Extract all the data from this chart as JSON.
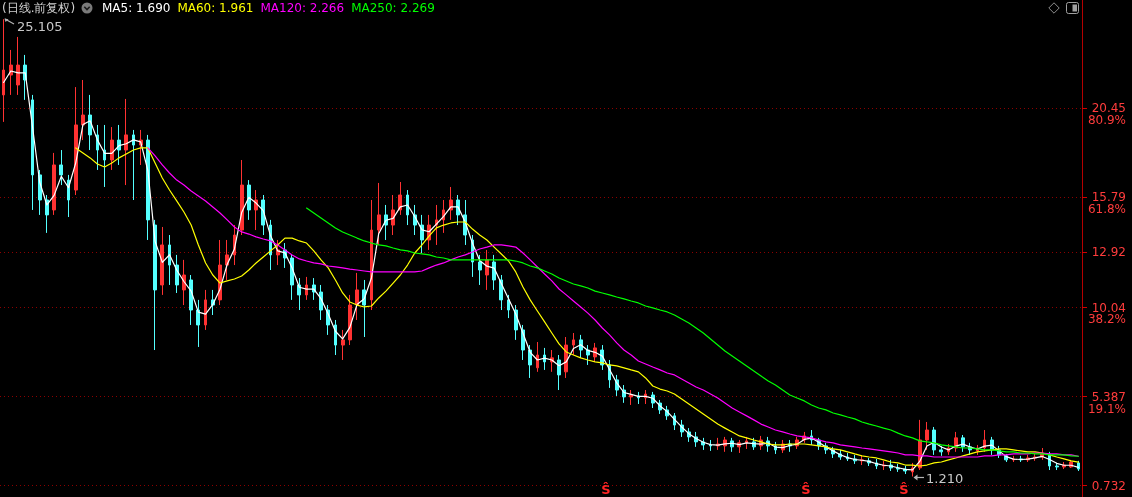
{
  "chart_data": {
    "type": "candlestick",
    "title": "(日线.前复权)",
    "categories": [
      null,
      null,
      null,
      null,
      null,
      null,
      null,
      null,
      null,
      null,
      null,
      null,
      null,
      null,
      null,
      null,
      null,
      null,
      null,
      null,
      null,
      null,
      null,
      null,
      null,
      null,
      null,
      null,
      null,
      null,
      null,
      null,
      null,
      null,
      null,
      null,
      null,
      null,
      null,
      null,
      null,
      null,
      null,
      null,
      null,
      null,
      null,
      null,
      null,
      null,
      null,
      null,
      null,
      null,
      null,
      null,
      null,
      null,
      null,
      null,
      null,
      null,
      null,
      null,
      null,
      null,
      null,
      null,
      null,
      null,
      null,
      null,
      null,
      null,
      null,
      null,
      null,
      null,
      null,
      null,
      null,
      null,
      null,
      null,
      null,
      null,
      null,
      null,
      null,
      null,
      null,
      null,
      null,
      null,
      null,
      null,
      null,
      null,
      null,
      null,
      null,
      null,
      null,
      null,
      null,
      null,
      null,
      null,
      null,
      null,
      null,
      null,
      null,
      null,
      null,
      null,
      null,
      null,
      null,
      null,
      null,
      null,
      null,
      null,
      null,
      null,
      null,
      null,
      null,
      null,
      null,
      null,
      null,
      null,
      null,
      null,
      null,
      null,
      null,
      null,
      null,
      null,
      null,
      null,
      null,
      null,
      null,
      null,
      null,
      null
    ],
    "ohlc": [
      [
        21.15,
        25.105,
        19.74,
        22.45
      ],
      [
        22.19,
        23.5,
        21.15,
        22.71
      ],
      [
        21.67,
        24.18,
        21.15,
        22.71
      ],
      [
        22.71,
        23.24,
        20.89,
        21.93
      ],
      [
        20.89,
        21.15,
        15.14,
        16.97
      ],
      [
        16.97,
        17.23,
        14.88,
        15.66
      ],
      [
        15.66,
        15.92,
        13.94,
        14.88
      ],
      [
        15.14,
        18.12,
        14.88,
        17.49
      ],
      [
        17.49,
        18.27,
        16.44,
        16.97
      ],
      [
        16.7,
        16.97,
        14.77,
        15.66
      ],
      [
        16.18,
        21.56,
        15.92,
        19.58
      ],
      [
        19.58,
        21.93,
        18.79,
        20.1
      ],
      [
        20.1,
        21.15,
        18.27,
        19.06
      ],
      [
        19.06,
        19.58,
        17.23,
        18.27
      ],
      [
        18.27,
        19.58,
        16.34,
        17.75
      ],
      [
        17.75,
        19.47,
        17.23,
        18.79
      ],
      [
        18.79,
        19.58,
        17.49,
        18.27
      ],
      [
        18.27,
        20.94,
        16.44,
        19.06
      ],
      [
        19.06,
        19.32,
        15.66,
        18.53
      ],
      [
        18.53,
        19.32,
        17.49,
        18.79
      ],
      [
        18.79,
        19.06,
        13.57,
        14.62
      ],
      [
        14.35,
        14.62,
        7.82,
        10.96
      ],
      [
        11.22,
        14.25,
        10.7,
        13.31
      ],
      [
        13.31,
        13.83,
        11.22,
        12.26
      ],
      [
        12.26,
        12.79,
        10.8,
        11.22
      ],
      [
        10.96,
        12.53,
        10.17,
        11.74
      ],
      [
        11.48,
        11.74,
        9.13,
        9.91
      ],
      [
        9.91,
        10.44,
        7.98,
        9.13
      ],
      [
        9.13,
        10.96,
        8.87,
        10.44
      ],
      [
        10.44,
        10.96,
        9.65,
        10.17
      ],
      [
        10.44,
        13.57,
        10.17,
        12.26
      ],
      [
        12.26,
        13.57,
        11.48,
        12.79
      ],
      [
        12.79,
        14.35,
        12.26,
        13.83
      ],
      [
        14.09,
        17.75,
        13.83,
        16.44
      ],
      [
        16.44,
        16.7,
        14.62,
        15.14
      ],
      [
        15.14,
        16.18,
        14.09,
        15.66
      ],
      [
        15.66,
        15.92,
        13.83,
        14.35
      ],
      [
        14.35,
        14.62,
        12.0,
        12.79
      ],
      [
        12.79,
        13.57,
        12.26,
        13.05
      ],
      [
        13.05,
        13.41,
        12.11,
        12.63
      ],
      [
        12.63,
        12.79,
        10.44,
        11.22
      ],
      [
        11.22,
        11.58,
        9.91,
        10.7
      ],
      [
        10.7,
        11.64,
        10.44,
        11.22
      ],
      [
        11.22,
        11.58,
        10.44,
        10.85
      ],
      [
        10.85,
        11.22,
        9.39,
        9.91
      ],
      [
        9.91,
        10.17,
        8.61,
        9.13
      ],
      [
        9.13,
        9.39,
        7.56,
        8.08
      ],
      [
        8.08,
        8.87,
        7.3,
        8.35
      ],
      [
        8.35,
        10.7,
        8.08,
        10.17
      ],
      [
        10.17,
        11.85,
        9.39,
        10.96
      ],
      [
        10.96,
        11.48,
        8.5,
        10.17
      ],
      [
        10.44,
        15.66,
        9.91,
        14.09
      ],
      [
        14.09,
        16.55,
        13.31,
        14.88
      ],
      [
        14.88,
        15.4,
        13.57,
        14.35
      ],
      [
        14.35,
        15.92,
        13.83,
        15.14
      ],
      [
        15.14,
        16.6,
        14.88,
        15.92
      ],
      [
        15.92,
        16.18,
        14.35,
        14.88
      ],
      [
        14.88,
        15.4,
        13.83,
        14.35
      ],
      [
        14.35,
        14.88,
        12.89,
        13.57
      ],
      [
        13.57,
        14.88,
        13.05,
        14.35
      ],
      [
        14.35,
        15.4,
        13.31,
        14.62
      ],
      [
        14.62,
        15.66,
        13.94,
        15.14
      ],
      [
        15.14,
        16.34,
        14.62,
        15.66
      ],
      [
        15.66,
        15.92,
        14.35,
        14.88
      ],
      [
        14.88,
        15.66,
        13.31,
        13.83
      ],
      [
        13.57,
        13.83,
        11.64,
        12.42
      ],
      [
        12.42,
        12.79,
        11.22,
        12.0
      ],
      [
        11.74,
        13.05,
        10.96,
        12.53
      ],
      [
        12.42,
        12.79,
        10.96,
        11.48
      ],
      [
        11.48,
        11.74,
        9.91,
        10.44
      ],
      [
        10.44,
        10.7,
        9.49,
        9.91
      ],
      [
        9.91,
        10.17,
        8.35,
        8.87
      ],
      [
        8.87,
        9.13,
        7.3,
        7.82
      ],
      [
        7.82,
        8.08,
        6.36,
        7.04
      ],
      [
        6.89,
        8.24,
        6.68,
        7.56
      ],
      [
        7.56,
        7.93,
        6.78,
        7.2
      ],
      [
        7.2,
        7.82,
        6.68,
        7.41
      ],
      [
        7.3,
        7.56,
        5.73,
        6.52
      ],
      [
        6.68,
        8.5,
        6.36,
        8.08
      ],
      [
        8.08,
        8.71,
        7.56,
        8.35
      ],
      [
        8.35,
        8.61,
        7.41,
        7.82
      ],
      [
        7.82,
        8.08,
        7.04,
        7.56
      ],
      [
        7.46,
        8.19,
        7.2,
        7.93
      ],
      [
        7.82,
        8.08,
        6.78,
        7.04
      ],
      [
        7.04,
        7.3,
        5.84,
        6.26
      ],
      [
        6.26,
        6.52,
        5.42,
        5.73
      ],
      [
        5.73,
        5.99,
        5.06,
        5.37
      ],
      [
        5.37,
        5.73,
        4.95,
        5.47
      ],
      [
        5.42,
        5.63,
        5.0,
        5.32
      ],
      [
        5.32,
        5.73,
        5.0,
        5.52
      ],
      [
        5.47,
        5.63,
        4.79,
        5.05
      ],
      [
        5.05,
        5.21,
        4.48,
        4.69
      ],
      [
        4.69,
        4.9,
        4.17,
        4.38
      ],
      [
        4.38,
        4.53,
        3.64,
        3.9
      ],
      [
        3.9,
        4.17,
        3.28,
        3.54
      ],
      [
        3.54,
        3.74,
        3.02,
        3.28
      ],
      [
        3.28,
        3.54,
        2.76,
        3.02
      ],
      [
        3.02,
        3.23,
        2.6,
        2.86
      ],
      [
        2.86,
        3.12,
        2.55,
        2.81
      ],
      [
        2.81,
        3.23,
        2.6,
        2.91
      ],
      [
        2.81,
        3.28,
        2.5,
        3.12
      ],
      [
        3.07,
        3.23,
        2.5,
        2.76
      ],
      [
        2.76,
        3.12,
        2.44,
        2.97
      ],
      [
        2.97,
        3.28,
        2.65,
        3.07
      ],
      [
        3.02,
        3.23,
        2.6,
        2.76
      ],
      [
        2.81,
        3.33,
        2.6,
        3.12
      ],
      [
        3.07,
        3.28,
        2.5,
        2.81
      ],
      [
        2.81,
        3.02,
        2.39,
        2.6
      ],
      [
        2.6,
        3.12,
        2.44,
        2.91
      ],
      [
        2.91,
        3.12,
        2.5,
        2.81
      ],
      [
        2.81,
        3.28,
        2.65,
        3.12
      ],
      [
        3.12,
        3.54,
        2.97,
        3.33
      ],
      [
        3.33,
        3.64,
        2.86,
        3.12
      ],
      [
        3.12,
        3.23,
        2.6,
        2.81
      ],
      [
        2.81,
        2.97,
        2.39,
        2.6
      ],
      [
        2.6,
        2.76,
        2.18,
        2.39
      ],
      [
        2.39,
        2.6,
        2.08,
        2.23
      ],
      [
        2.23,
        2.44,
        2.02,
        2.13
      ],
      [
        2.13,
        2.34,
        1.87,
        2.03
      ],
      [
        2.03,
        2.29,
        1.81,
        2.08
      ],
      [
        2.03,
        2.18,
        1.76,
        1.92
      ],
      [
        1.92,
        2.13,
        1.6,
        1.76
      ],
      [
        1.76,
        2.03,
        1.55,
        1.81
      ],
      [
        1.81,
        2.08,
        1.5,
        1.66
      ],
      [
        1.66,
        1.87,
        1.45,
        1.6
      ],
      [
        1.6,
        1.76,
        1.34,
        1.5
      ],
      [
        1.45,
        1.92,
        1.21,
        1.66
      ],
      [
        1.66,
        4.17,
        1.55,
        3.12
      ],
      [
        3.12,
        4.06,
        2.6,
        3.64
      ],
      [
        3.64,
        3.8,
        2.34,
        2.6
      ],
      [
        2.6,
        2.81,
        2.29,
        2.5
      ],
      [
        2.5,
        2.91,
        2.34,
        2.7
      ],
      [
        2.7,
        3.54,
        2.5,
        3.23
      ],
      [
        3.23,
        3.38,
        2.5,
        2.76
      ],
      [
        2.76,
        2.97,
        2.34,
        2.6
      ],
      [
        2.55,
        2.86,
        2.34,
        2.7
      ],
      [
        2.7,
        3.64,
        2.5,
        3.12
      ],
      [
        3.12,
        3.28,
        2.34,
        2.6
      ],
      [
        2.6,
        2.81,
        2.18,
        2.34
      ],
      [
        2.29,
        2.39,
        1.97,
        2.08
      ],
      [
        2.08,
        2.29,
        1.97,
        2.13
      ],
      [
        2.13,
        2.29,
        1.97,
        2.08
      ],
      [
        2.08,
        2.34,
        1.97,
        2.18
      ],
      [
        2.18,
        2.39,
        2.03,
        2.23
      ],
      [
        2.23,
        2.7,
        2.08,
        2.39
      ],
      [
        2.39,
        2.5,
        1.55,
        1.76
      ],
      [
        1.76,
        1.92,
        1.55,
        1.71
      ],
      [
        1.71,
        1.97,
        1.6,
        1.81
      ],
      [
        1.71,
        2.08,
        1.66,
        1.97
      ],
      [
        1.92,
        2.03,
        1.5,
        1.6
      ]
    ],
    "colors": [
      "#ff3232",
      "#ff3232",
      "#ff3232",
      "#54ffff",
      "#54ffff",
      "#54ffff",
      "#54ffff",
      "#ff3232",
      "#54ffff",
      "#54ffff",
      "#ff3232",
      "#ff3232",
      "#54ffff",
      "#54ffff",
      "#54ffff",
      "#ff3232",
      "#54ffff",
      "#ff3232",
      "#54ffff",
      "#ff3232",
      "#54ffff",
      "#54ffff",
      "#ff3232",
      "#54ffff",
      "#54ffff",
      "#ff3232",
      "#54ffff",
      "#54ffff",
      "#ff3232",
      "#54ffff",
      "#ff3232",
      "#ff3232",
      "#ff3232",
      "#ff3232",
      "#54ffff",
      "#ff3232",
      "#54ffff",
      "#54ffff",
      "#ff3232",
      "#54ffff",
      "#54ffff",
      "#54ffff",
      "#ff3232",
      "#54ffff",
      "#54ffff",
      "#54ffff",
      "#54ffff",
      "#ff3232",
      "#ff3232",
      "#ff3232",
      "#54ffff",
      "#ff3232",
      "#ff3232",
      "#54ffff",
      "#ff3232",
      "#ff3232",
      "#54ffff",
      "#54ffff",
      "#54ffff",
      "#ff3232",
      "#ff3232",
      "#ff3232",
      "#ff3232",
      "#54ffff",
      "#54ffff",
      "#54ffff",
      "#54ffff",
      "#ff3232",
      "#54ffff",
      "#54ffff",
      "#54ffff",
      "#54ffff",
      "#54ffff",
      "#54ffff",
      "#ff3232",
      "#54ffff",
      "#ff3232",
      "#54ffff",
      "#ff3232",
      "#ff3232",
      "#54ffff",
      "#54ffff",
      "#ff3232",
      "#54ffff",
      "#54ffff",
      "#54ffff",
      "#54ffff",
      "#ff3232",
      "#54ffff",
      "#ff3232",
      "#54ffff",
      "#54ffff",
      "#54ffff",
      "#54ffff",
      "#54ffff",
      "#54ffff",
      "#54ffff",
      "#54ffff",
      "#54ffff",
      "#ff3232",
      "#ff3232",
      "#54ffff",
      "#ff3232",
      "#ff3232",
      "#54ffff",
      "#ff3232",
      "#54ffff",
      "#54ffff",
      "#ff3232",
      "#54ffff",
      "#ff3232",
      "#ff3232",
      "#54ffff",
      "#54ffff",
      "#54ffff",
      "#54ffff",
      "#54ffff",
      "#54ffff",
      "#54ffff",
      "#ff3232",
      "#54ffff",
      "#54ffff",
      "#ff3232",
      "#54ffff",
      "#54ffff",
      "#54ffff",
      "#ff3232",
      "#ff3232",
      "#ff3232",
      "#54ffff",
      "#54ffff",
      "#ff3232",
      "#ff3232",
      "#54ffff",
      "#54ffff",
      "#ff3232",
      "#ff3232",
      "#54ffff",
      "#54ffff",
      "#54ffff",
      "#ff3232",
      "#54ffff",
      "#ff3232",
      "#ff3232",
      "#ff3232",
      "#54ffff",
      "#54ffff",
      "#ff3232",
      "#ff3232",
      "#54ffff"
    ],
    "series": [
      {
        "name": "MA5: 1.690",
        "type": "line",
        "color": "#ffffff",
        "values": [
          21.8,
          22.4,
          22.3,
          22.3,
          19.5,
          16.6,
          15.4,
          15.9,
          16.9,
          16.3,
          17.6,
          19.6,
          19.8,
          18.8,
          18.1,
          18.1,
          18.5,
          18.6,
          18.8,
          18.7,
          17.2,
          13.5,
          12.4,
          12.8,
          12.0,
          11.4,
          10.9,
          9.8,
          9.7,
          10.2,
          11.0,
          12.3,
          13.1,
          15.0,
          15.8,
          15.5,
          15.1,
          13.8,
          13.0,
          12.9,
          12.1,
          11.1,
          11.0,
          11.0,
          10.5,
          9.7,
          8.8,
          8.4,
          9.0,
          10.2,
          10.5,
          11.6,
          13.9,
          14.6,
          14.7,
          15.3,
          15.4,
          14.8,
          14.1,
          14.0,
          14.4,
          14.8,
          15.3,
          15.3,
          14.5,
          13.4,
          12.5,
          12.2,
          12.1,
          11.3,
          10.5,
          9.7,
          8.7,
          7.7,
          7.3,
          7.4,
          7.3,
          7.0,
          7.2,
          7.9,
          8.1,
          7.8,
          7.7,
          7.5,
          6.8,
          6.1,
          5.6,
          5.5,
          5.4,
          5.4,
          5.3,
          4.9,
          4.6,
          4.2,
          3.8,
          3.45,
          3.2,
          3.0,
          2.88,
          2.85,
          2.92,
          2.95,
          2.88,
          2.97,
          2.93,
          2.9,
          2.96,
          2.75,
          2.72,
          2.83,
          2.9,
          3.15,
          3.22,
          3.0,
          2.75,
          2.55,
          2.35,
          2.2,
          2.1,
          2.06,
          2.0,
          1.88,
          1.8,
          1.76,
          1.67,
          1.58,
          1.56,
          2.0,
          2.8,
          3.0,
          2.75,
          2.6,
          2.8,
          2.9,
          2.75,
          2.65,
          2.8,
          2.85,
          2.55,
          2.25,
          2.12,
          2.1,
          2.12,
          2.18,
          2.26,
          2.1,
          1.9,
          1.8,
          1.8,
          1.69
        ]
      },
      {
        "name": "MA60: 1.961",
        "type": "line",
        "color": "#ffff00",
        "values": [
          null,
          null,
          null,
          null,
          null,
          null,
          null,
          null,
          null,
          null,
          18.38,
          18.12,
          17.86,
          17.54,
          17.38,
          17.59,
          17.86,
          18.06,
          18.27,
          18.38,
          18.38,
          17.59,
          16.81,
          16.18,
          15.61,
          15.03,
          14.35,
          13.31,
          12.37,
          11.74,
          11.32,
          11.43,
          11.53,
          11.69,
          12.0,
          12.37,
          12.68,
          13.0,
          13.31,
          13.67,
          13.67,
          13.52,
          13.41,
          13.0,
          12.53,
          12.11,
          11.48,
          10.8,
          10.33,
          10.17,
          10.07,
          10.12,
          10.54,
          10.9,
          11.32,
          11.74,
          12.26,
          12.89,
          13.31,
          13.78,
          14.2,
          14.35,
          14.46,
          14.51,
          14.51,
          14.14,
          13.83,
          13.57,
          13.2,
          12.84,
          12.47,
          11.9,
          11.11,
          10.44,
          9.86,
          9.29,
          8.71,
          8.14,
          7.72,
          7.56,
          7.41,
          7.3,
          7.2,
          7.15,
          7.04,
          6.99,
          6.89,
          6.78,
          6.68,
          6.36,
          5.94,
          5.78,
          5.68,
          5.52,
          5.26,
          5.0,
          4.74,
          4.48,
          4.22,
          3.95,
          3.74,
          3.54,
          3.33,
          3.23,
          3.12,
          3.02,
          2.91,
          2.86,
          2.86,
          2.91,
          2.91,
          2.91,
          2.86,
          2.81,
          2.76,
          2.65,
          2.6,
          2.5,
          2.39,
          2.29,
          2.23,
          2.18,
          2.08,
          1.97,
          1.92,
          1.81,
          1.81,
          1.76,
          1.81,
          1.92,
          1.97,
          2.08,
          2.18,
          2.29,
          2.39,
          2.5,
          2.55,
          2.6,
          2.65,
          2.65,
          2.6,
          2.55,
          2.5,
          2.5,
          2.44,
          2.34,
          2.23,
          2.13,
          2.03,
          1.96
        ]
      },
      {
        "name": "MA120: 2.266",
        "type": "line",
        "color": "#ff00ff",
        "values": [
          null,
          null,
          null,
          null,
          null,
          null,
          null,
          null,
          null,
          null,
          null,
          null,
          null,
          null,
          null,
          null,
          null,
          null,
          null,
          null,
          18.38,
          17.96,
          17.49,
          17.07,
          16.7,
          16.44,
          16.13,
          15.87,
          15.61,
          15.29,
          14.98,
          14.62,
          14.25,
          13.99,
          13.88,
          13.73,
          13.62,
          13.52,
          13.31,
          13.05,
          12.79,
          12.58,
          12.47,
          12.37,
          12.32,
          12.21,
          12.16,
          12.11,
          12.05,
          12.0,
          11.95,
          11.9,
          11.9,
          11.9,
          11.9,
          11.9,
          11.9,
          11.9,
          11.95,
          12.11,
          12.26,
          12.37,
          12.53,
          12.68,
          12.79,
          12.94,
          13.1,
          13.2,
          13.31,
          13.31,
          13.26,
          13.2,
          12.89,
          12.53,
          12.16,
          11.79,
          11.43,
          11.01,
          10.7,
          10.38,
          10.07,
          9.75,
          9.39,
          8.97,
          8.61,
          8.19,
          7.82,
          7.56,
          7.25,
          7.09,
          6.93,
          6.78,
          6.62,
          6.52,
          6.31,
          6.1,
          5.89,
          5.73,
          5.52,
          5.31,
          5.05,
          4.79,
          4.58,
          4.38,
          4.17,
          3.95,
          3.8,
          3.64,
          3.54,
          3.43,
          3.33,
          3.28,
          3.23,
          3.12,
          3.02,
          2.97,
          2.86,
          2.81,
          2.76,
          2.7,
          2.65,
          2.6,
          2.55,
          2.5,
          2.44,
          2.34,
          2.34,
          2.29,
          2.29,
          2.23,
          2.23,
          2.23,
          2.23,
          2.23,
          2.23,
          2.23,
          2.29,
          2.29,
          2.34,
          2.34,
          2.39,
          2.39,
          2.39,
          2.44,
          2.44,
          2.39,
          2.39,
          2.34,
          2.34,
          2.27
        ]
      },
      {
        "name": "MA250: 2.269",
        "type": "line",
        "color": "#00ff00",
        "values": [
          null,
          null,
          null,
          null,
          null,
          null,
          null,
          null,
          null,
          null,
          null,
          null,
          null,
          null,
          null,
          null,
          null,
          null,
          null,
          null,
          null,
          null,
          null,
          null,
          null,
          null,
          null,
          null,
          null,
          null,
          null,
          null,
          null,
          null,
          null,
          null,
          null,
          null,
          null,
          null,
          null,
          null,
          15.24,
          14.98,
          14.72,
          14.46,
          14.2,
          13.99,
          13.83,
          13.67,
          13.52,
          13.41,
          13.31,
          13.26,
          13.15,
          13.05,
          13.0,
          12.89,
          12.84,
          12.79,
          12.68,
          12.63,
          12.53,
          12.53,
          12.53,
          12.53,
          12.53,
          12.53,
          12.53,
          12.53,
          12.53,
          12.47,
          12.37,
          12.21,
          12.11,
          11.95,
          11.79,
          11.58,
          11.43,
          11.27,
          11.17,
          11.06,
          10.9,
          10.8,
          10.7,
          10.59,
          10.49,
          10.38,
          10.28,
          10.12,
          10.02,
          9.91,
          9.81,
          9.65,
          9.44,
          9.23,
          8.97,
          8.71,
          8.4,
          8.08,
          7.77,
          7.51,
          7.25,
          6.99,
          6.73,
          6.46,
          6.2,
          5.99,
          5.73,
          5.47,
          5.31,
          5.16,
          4.95,
          4.79,
          4.69,
          4.53,
          4.43,
          4.32,
          4.22,
          4.06,
          3.95,
          3.85,
          3.74,
          3.64,
          3.48,
          3.33,
          3.23,
          3.07,
          3.02,
          2.97,
          2.86,
          2.81,
          2.76,
          2.7,
          2.7,
          2.65,
          2.6,
          2.6,
          2.55,
          2.5,
          2.5,
          2.44,
          2.44,
          2.39,
          2.39,
          2.34,
          2.34,
          2.34,
          2.29,
          2.27
        ]
      }
    ],
    "ylim": [
      0.14,
      26.11
    ],
    "yticks": [
      20.45,
      15.79,
      12.92,
      10.04,
      5.387,
      0.732
    ],
    "y2lim": [
      -2.43,
      104.12
    ],
    "y2ticks": [
      {
        "value": 80.9,
        "label": "80.9%"
      },
      {
        "value": 61.8,
        "label": "61.8%"
      },
      {
        "value": 38.2,
        "label": "38.2%"
      },
      {
        "value": 19.1,
        "label": "19.1%"
      }
    ],
    "annotations": [
      "25.105",
      "1.210",
      "Ŝ",
      "Ŝ",
      "Ŝ"
    ],
    "legend": "top left",
    "grid": "y",
    "marker": "none",
    "tick_labels": "y"
  }
}
